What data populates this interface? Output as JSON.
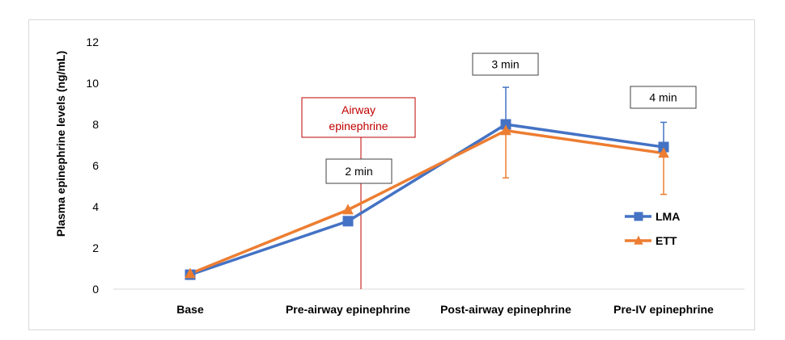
{
  "chart_data": {
    "type": "line",
    "ylabel": "Plasma epinephrine levels (ng/mL)",
    "xlabel": "",
    "ylim": [
      0,
      12
    ],
    "yticks": [
      "0",
      "2",
      "4",
      "6",
      "8",
      "10",
      "12"
    ],
    "categories": [
      "Base",
      "Pre-airway epinephrine",
      "Post-airway epinephrine",
      "Pre-IV epinephrine"
    ],
    "grid": false,
    "legend_position": "right",
    "series": [
      {
        "name": "LMA",
        "color": "#4472c4",
        "marker": "square",
        "values": [
          0.7,
          3.3,
          8.0,
          6.9
        ],
        "error_plus": [
          0,
          0,
          1.8,
          1.2
        ],
        "error_minus": [
          0,
          0,
          0,
          0
        ]
      },
      {
        "name": "ETT",
        "color": "#ed7d31",
        "marker": "triangle",
        "values": [
          0.75,
          3.85,
          7.7,
          6.6
        ],
        "error_plus": [
          0,
          0,
          0,
          0
        ],
        "error_minus": [
          0,
          0,
          2.3,
          2.0
        ]
      }
    ],
    "annotations": [
      {
        "text": "2 min",
        "category_index": 1
      },
      {
        "text": "3 min",
        "category_index": 2
      },
      {
        "text": "4 min",
        "category_index": 3
      }
    ],
    "marker_annotation": {
      "lines": [
        "Airway",
        "epinephrine"
      ],
      "color": "#c00000",
      "position_between": [
        1,
        2
      ]
    }
  }
}
